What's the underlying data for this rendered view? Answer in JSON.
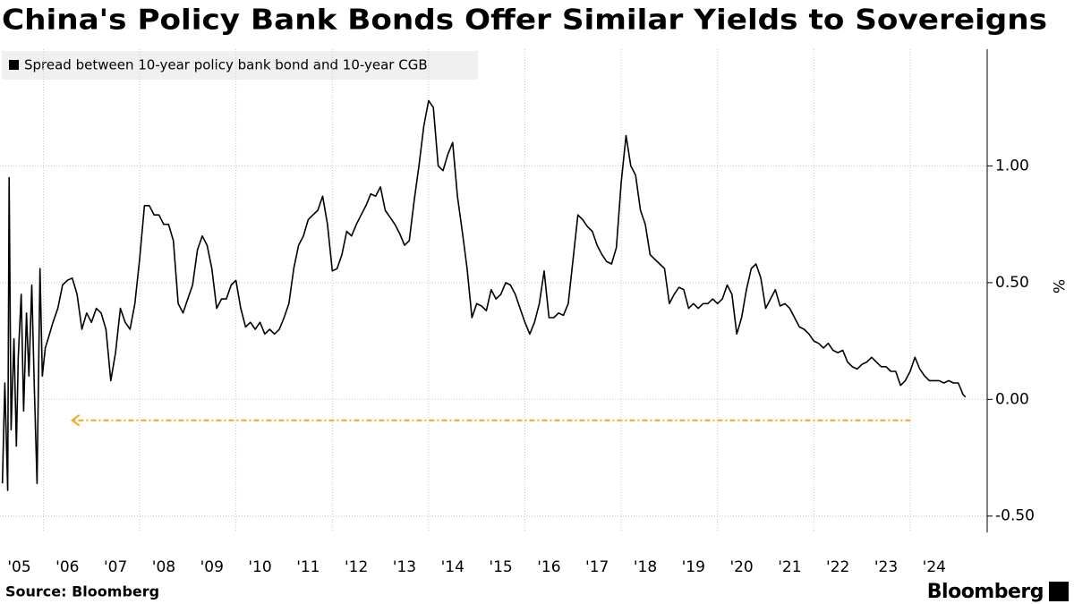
{
  "chart_data": {
    "type": "line",
    "title": "China's Policy Bank Bonds Offer Similar Yields to Sovereigns",
    "ylabel": "%",
    "source": "Source: Bloomberg",
    "brand": "Bloomberg",
    "x": [
      2005.15,
      2005.2,
      2005.26,
      2005.29,
      2005.33,
      2005.39,
      2005.44,
      2005.48,
      2005.54,
      2005.59,
      2005.65,
      2005.7,
      2005.76,
      2005.81,
      2005.87,
      2005.93,
      2005.98,
      2006.04,
      2006.1,
      2006.2,
      2006.3,
      2006.4,
      2006.5,
      2006.6,
      2006.7,
      2006.8,
      2006.9,
      2007.0,
      2007.1,
      2007.2,
      2007.3,
      2007.4,
      2007.5,
      2007.6,
      2007.7,
      2007.8,
      2007.9,
      2008.0,
      2008.1,
      2008.2,
      2008.3,
      2008.4,
      2008.5,
      2008.6,
      2008.7,
      2008.8,
      2008.9,
      2009.0,
      2009.1,
      2009.2,
      2009.3,
      2009.4,
      2009.5,
      2009.6,
      2009.7,
      2009.8,
      2009.9,
      2010.0,
      2010.1,
      2010.2,
      2010.3,
      2010.4,
      2010.5,
      2010.6,
      2010.7,
      2010.8,
      2010.9,
      2011.0,
      2011.1,
      2011.2,
      2011.3,
      2011.4,
      2011.5,
      2011.6,
      2011.7,
      2011.8,
      2011.9,
      2012.0,
      2012.1,
      2012.2,
      2012.3,
      2012.4,
      2012.5,
      2012.6,
      2012.7,
      2012.8,
      2012.9,
      2013.0,
      2013.1,
      2013.2,
      2013.3,
      2013.4,
      2013.5,
      2013.6,
      2013.7,
      2013.8,
      2013.9,
      2014.0,
      2014.1,
      2014.2,
      2014.3,
      2014.4,
      2014.5,
      2014.6,
      2014.7,
      2014.8,
      2014.9,
      2015.0,
      2015.1,
      2015.2,
      2015.3,
      2015.4,
      2015.5,
      2015.6,
      2015.7,
      2015.8,
      2015.9,
      2016.0,
      2016.1,
      2016.2,
      2016.3,
      2016.4,
      2016.5,
      2016.6,
      2016.7,
      2016.8,
      2016.9,
      2017.0,
      2017.1,
      2017.2,
      2017.3,
      2017.4,
      2017.5,
      2017.6,
      2017.7,
      2017.8,
      2017.9,
      2018.0,
      2018.1,
      2018.2,
      2018.3,
      2018.4,
      2018.5,
      2018.6,
      2018.7,
      2018.8,
      2018.9,
      2019.0,
      2019.1,
      2019.2,
      2019.3,
      2019.4,
      2019.5,
      2019.6,
      2019.7,
      2019.8,
      2019.9,
      2020.0,
      2020.1,
      2020.2,
      2020.3,
      2020.4,
      2020.5,
      2020.6,
      2020.7,
      2020.8,
      2020.9,
      2021.0,
      2021.1,
      2021.2,
      2021.3,
      2021.4,
      2021.5,
      2021.6,
      2021.7,
      2021.8,
      2021.9,
      2022.0,
      2022.1,
      2022.2,
      2022.3,
      2022.4,
      2022.5,
      2022.6,
      2022.7,
      2022.8,
      2022.9,
      2023.0,
      2023.1,
      2023.2,
      2023.3,
      2023.4,
      2023.5,
      2023.6,
      2023.7,
      2023.8,
      2023.9,
      2024.0,
      2024.1,
      2024.2,
      2024.3,
      2024.4,
      2024.5,
      2024.6,
      2024.7,
      2024.8,
      2024.9,
      2025.0,
      2025.1,
      2025.15
    ],
    "series": [
      {
        "name": "Spread between 10-year policy bank bond and 10-year CGB",
        "color": "#000000",
        "values": [
          -0.36,
          0.07,
          -0.39,
          0.95,
          -0.13,
          0.26,
          -0.2,
          0.18,
          0.45,
          -0.05,
          0.37,
          0.1,
          0.49,
          0.07,
          -0.36,
          0.56,
          0.1,
          0.22,
          0.26,
          0.33,
          0.39,
          0.49,
          0.51,
          0.52,
          0.45,
          0.3,
          0.37,
          0.33,
          0.39,
          0.37,
          0.3,
          0.08,
          0.2,
          0.39,
          0.33,
          0.3,
          0.41,
          0.6,
          0.83,
          0.83,
          0.79,
          0.79,
          0.75,
          0.75,
          0.68,
          0.41,
          0.37,
          0.43,
          0.49,
          0.64,
          0.7,
          0.66,
          0.56,
          0.39,
          0.43,
          0.43,
          0.49,
          0.51,
          0.39,
          0.31,
          0.33,
          0.3,
          0.33,
          0.28,
          0.3,
          0.28,
          0.3,
          0.35,
          0.41,
          0.56,
          0.66,
          0.7,
          0.77,
          0.79,
          0.81,
          0.87,
          0.75,
          0.55,
          0.56,
          0.62,
          0.72,
          0.7,
          0.75,
          0.79,
          0.83,
          0.88,
          0.87,
          0.91,
          0.81,
          0.78,
          0.75,
          0.71,
          0.66,
          0.68,
          0.85,
          1.0,
          1.17,
          1.28,
          1.25,
          1.0,
          0.98,
          1.05,
          1.1,
          0.87,
          0.72,
          0.56,
          0.35,
          0.41,
          0.4,
          0.38,
          0.47,
          0.43,
          0.45,
          0.5,
          0.49,
          0.45,
          0.39,
          0.33,
          0.28,
          0.33,
          0.41,
          0.55,
          0.35,
          0.35,
          0.37,
          0.36,
          0.41,
          0.6,
          0.79,
          0.77,
          0.74,
          0.72,
          0.66,
          0.62,
          0.59,
          0.58,
          0.65,
          0.93,
          1.13,
          1.0,
          0.96,
          0.81,
          0.75,
          0.62,
          0.6,
          0.58,
          0.56,
          0.41,
          0.45,
          0.48,
          0.47,
          0.39,
          0.41,
          0.39,
          0.41,
          0.41,
          0.43,
          0.41,
          0.43,
          0.49,
          0.45,
          0.28,
          0.35,
          0.47,
          0.56,
          0.58,
          0.52,
          0.39,
          0.43,
          0.47,
          0.4,
          0.41,
          0.39,
          0.35,
          0.31,
          0.3,
          0.28,
          0.25,
          0.24,
          0.22,
          0.24,
          0.21,
          0.2,
          0.21,
          0.16,
          0.14,
          0.13,
          0.15,
          0.16,
          0.18,
          0.16,
          0.14,
          0.14,
          0.12,
          0.12,
          0.06,
          0.08,
          0.12,
          0.18,
          0.13,
          0.1,
          0.08,
          0.08,
          0.08,
          0.07,
          0.08,
          0.07,
          0.07,
          0.02,
          0.01
        ]
      }
    ],
    "xlim": [
      2005.1,
      2025.6
    ],
    "xticks": [
      {
        "value": 2005,
        "label": "'05"
      },
      {
        "value": 2006,
        "label": "'06"
      },
      {
        "value": 2007,
        "label": "'07"
      },
      {
        "value": 2008,
        "label": "'08"
      },
      {
        "value": 2009,
        "label": "'09"
      },
      {
        "value": 2010,
        "label": "'10"
      },
      {
        "value": 2011,
        "label": "'11"
      },
      {
        "value": 2012,
        "label": "'12"
      },
      {
        "value": 2013,
        "label": "'13"
      },
      {
        "value": 2014,
        "label": "'14"
      },
      {
        "value": 2015,
        "label": "'15"
      },
      {
        "value": 2016,
        "label": "'16"
      },
      {
        "value": 2017,
        "label": "'17"
      },
      {
        "value": 2018,
        "label": "'18"
      },
      {
        "value": 2019,
        "label": "'19"
      },
      {
        "value": 2020,
        "label": "'20"
      },
      {
        "value": 2021,
        "label": "'21"
      },
      {
        "value": 2022,
        "label": "'22"
      },
      {
        "value": 2023,
        "label": "'23"
      },
      {
        "value": 2024,
        "label": "'24"
      }
    ],
    "ylim": [
      -0.57,
      1.5
    ],
    "yticks": [
      {
        "value": -0.5,
        "label": "-0.50"
      },
      {
        "value": 0,
        "label": "0.00"
      },
      {
        "value": 0.5,
        "label": "0.50"
      },
      {
        "value": 1,
        "label": "1.00"
      }
    ],
    "grid": true,
    "arrow": {
      "x": [
        2024.01,
        2006.6
      ],
      "y": -0.09,
      "color": "#f5a623"
    }
  }
}
